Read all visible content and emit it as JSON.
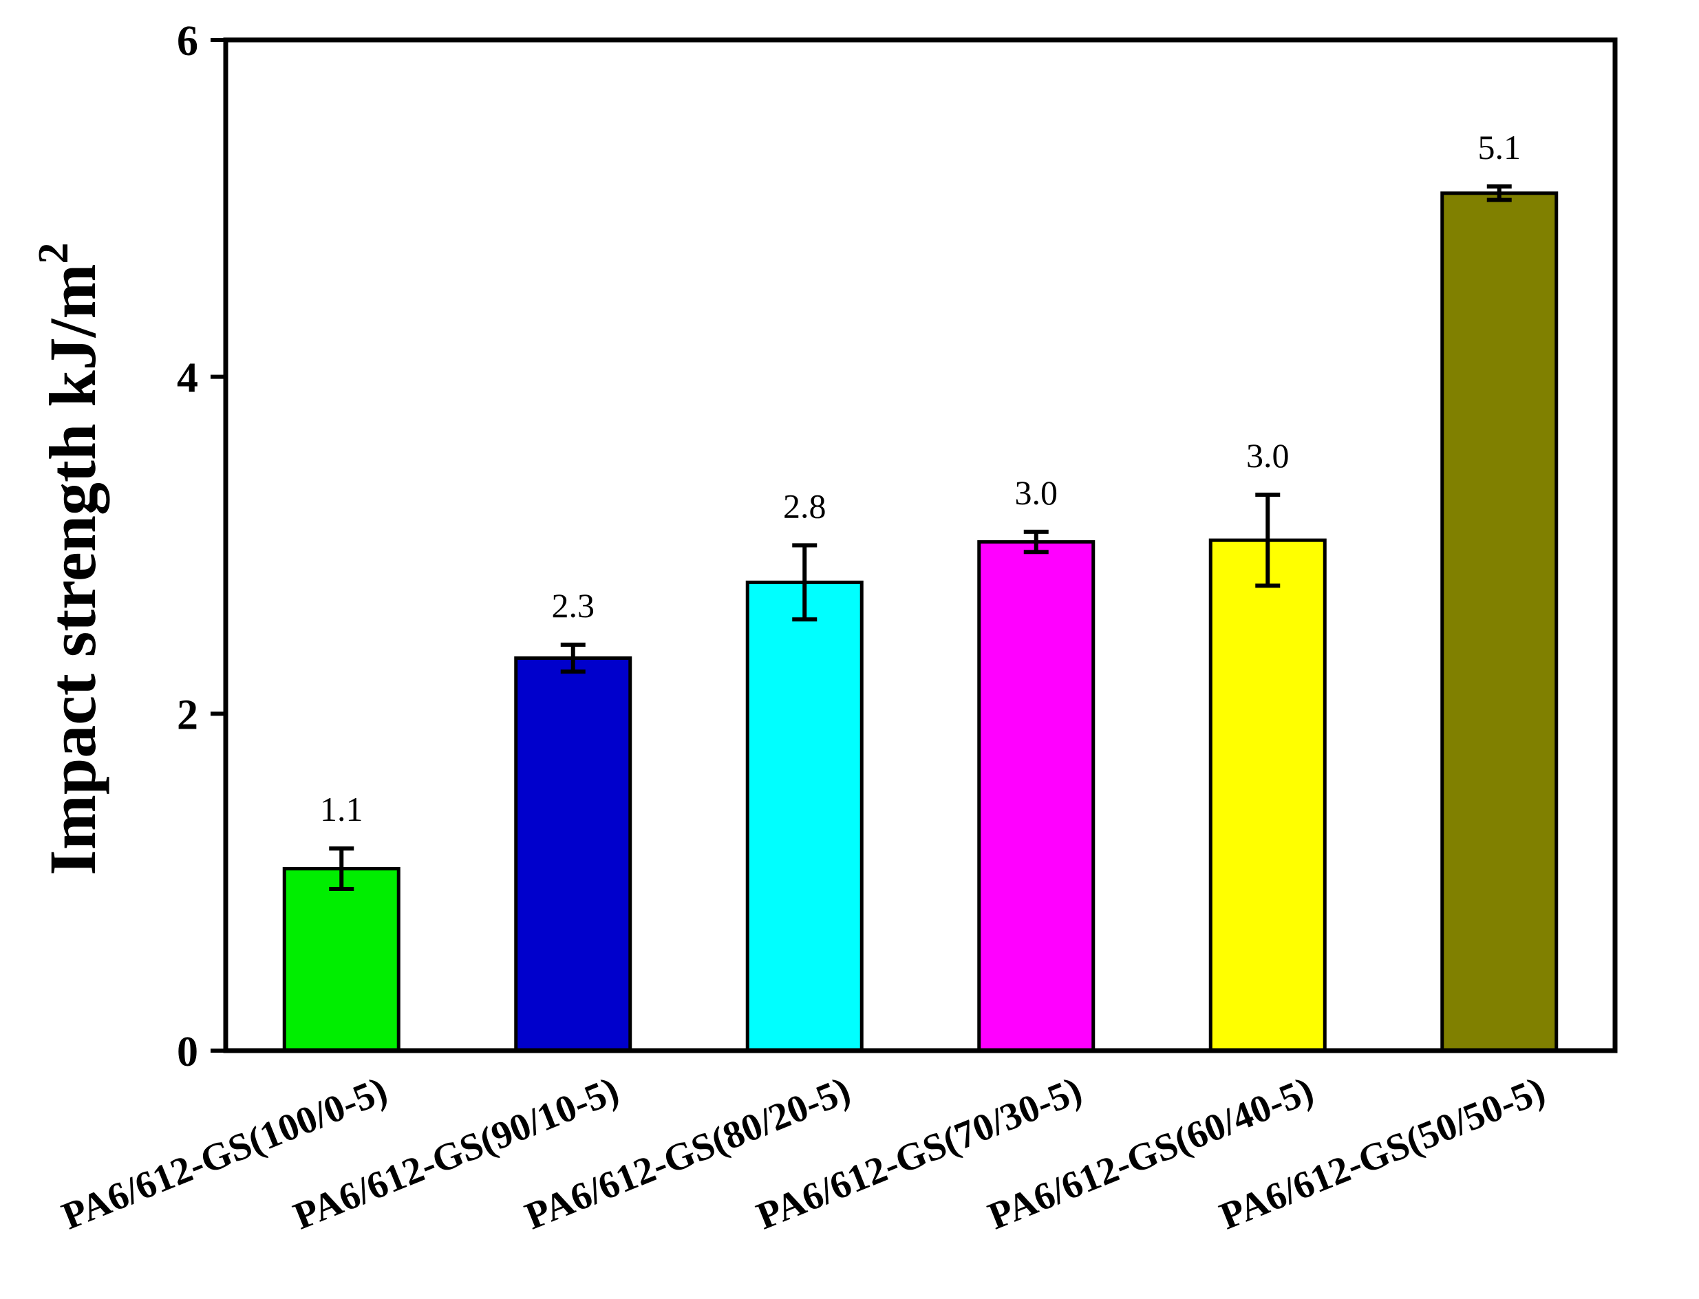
{
  "chart_data": {
    "type": "bar",
    "ylabel": "Impact strength kJ/m",
    "ylabel_superscript": "2",
    "ylim": [
      0,
      6
    ],
    "yticks": [
      0,
      2,
      4,
      6
    ],
    "yticks_text": [
      "0",
      "2",
      "4",
      "6"
    ],
    "categories": [
      "PA6/612-GS(100/0-5)",
      "PA6/612-GS(90/10-5)",
      "PA6/612-GS(80/20-5)",
      "PA6/612-GS(70/30-5)",
      "PA6/612-GS(60/40-5)",
      "PA6/612-GS(50/50-5)"
    ],
    "values": [
      1.08,
      2.33,
      2.78,
      3.02,
      3.03,
      5.09
    ],
    "errors": [
      0.12,
      0.08,
      0.22,
      0.06,
      0.27,
      0.04
    ],
    "value_labels": [
      "1.1",
      "2.3",
      "2.8",
      "3.0",
      "3.0",
      "5.1"
    ],
    "colors": [
      "#00ee00",
      "#0000cc",
      "#00ffff",
      "#ff00ff",
      "#ffff00",
      "#808000"
    ],
    "grid": false
  }
}
